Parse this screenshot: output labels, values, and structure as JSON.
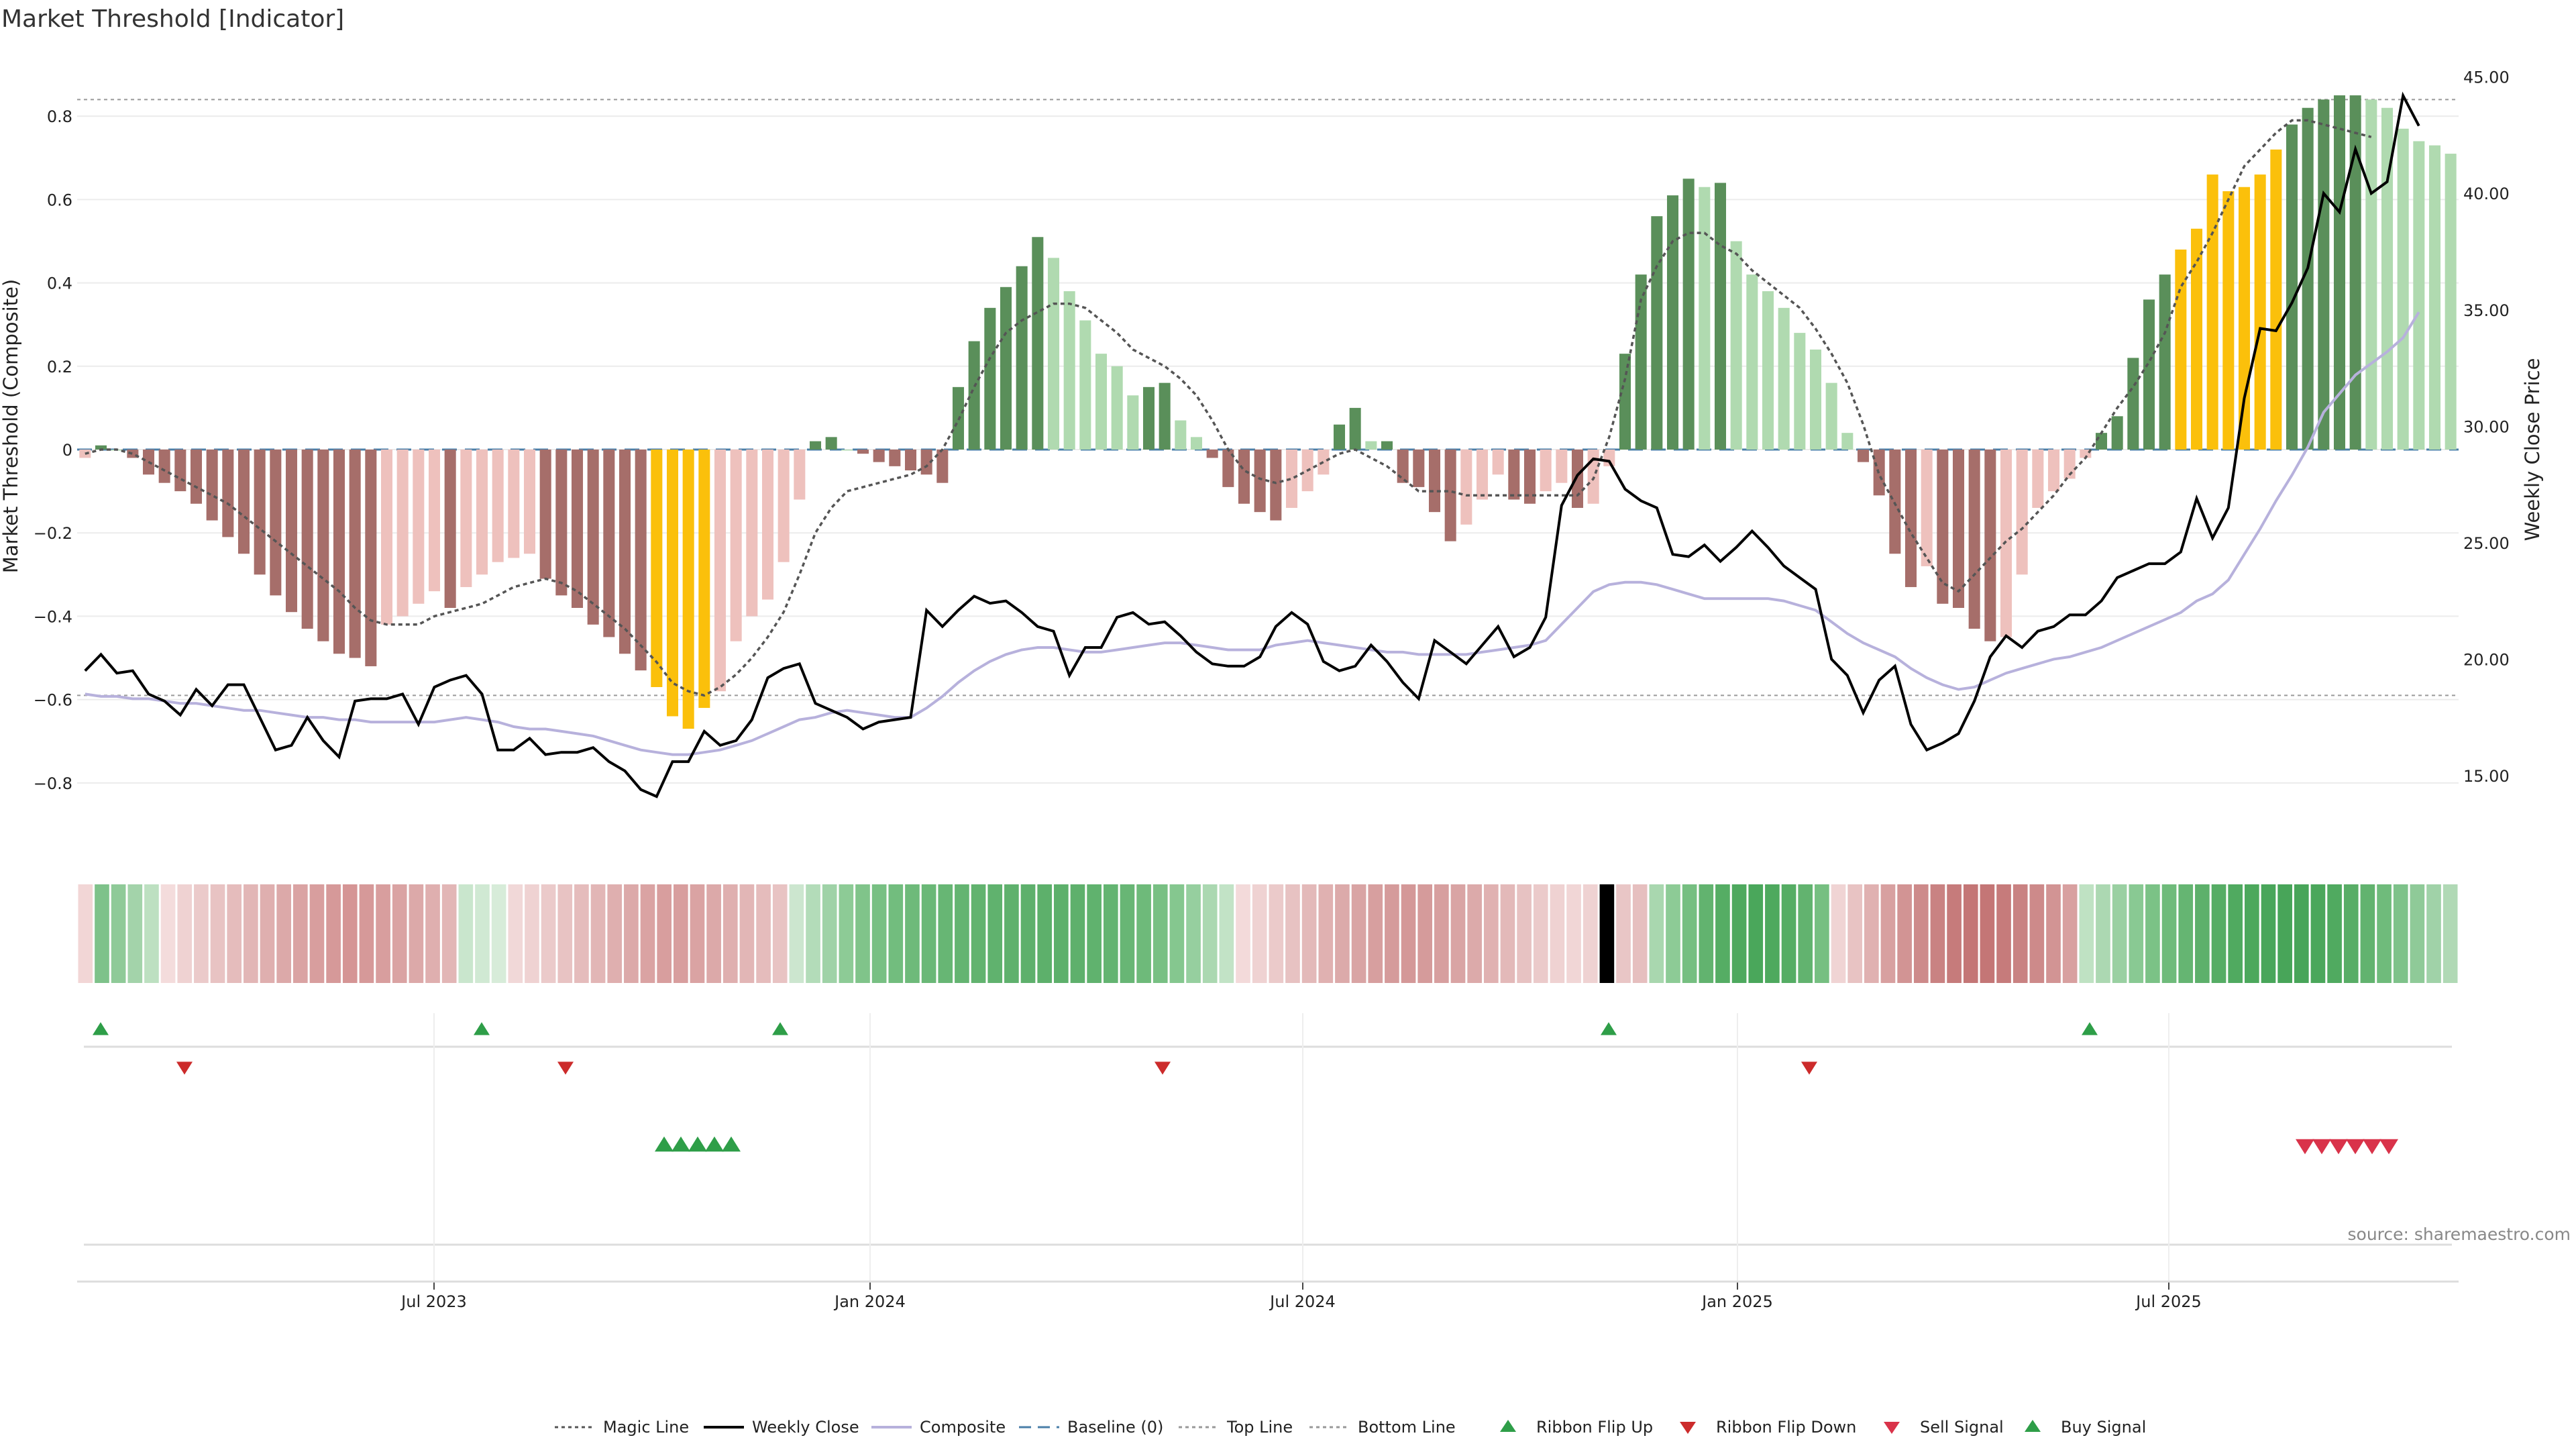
{
  "chart_data": {
    "type": "bar",
    "title": "Market Threshold [Indicator]",
    "ylabel_left": "Market Threshold (Composite)",
    "ylabel_right": "Weekly Close Price",
    "ylim_left": [
      -0.95,
      0.95
    ],
    "ylim_right": [
      12.0,
      46.0
    ],
    "yticks_left": [
      "0.8",
      "0.6",
      "0.4",
      "0.2",
      "0",
      "−0.2",
      "−0.4",
      "−0.6",
      "−0.8"
    ],
    "yticks_right": [
      "45.00",
      "40.00",
      "35.00",
      "30.00",
      "25.00",
      "20.00",
      "15.00"
    ],
    "xticks": [
      "Jul 2023",
      "Jan 2024",
      "Jul 2024",
      "Jan 2025",
      "Jul 2025"
    ],
    "top_line": 0.84,
    "bottom_line": -0.59,
    "baseline": 0,
    "composite": [
      -0.02,
      0.01,
      0.0,
      -0.02,
      -0.06,
      -0.08,
      -0.1,
      -0.13,
      -0.17,
      -0.21,
      -0.25,
      -0.3,
      -0.35,
      -0.39,
      -0.43,
      -0.46,
      -0.49,
      -0.5,
      -0.52,
      -0.42,
      -0.4,
      -0.37,
      -0.34,
      -0.38,
      -0.33,
      -0.3,
      -0.27,
      -0.26,
      -0.25,
      -0.31,
      -0.35,
      -0.38,
      -0.42,
      -0.45,
      -0.49,
      -0.53,
      -0.57,
      -0.64,
      -0.67,
      -0.62,
      -0.58,
      -0.46,
      -0.4,
      -0.36,
      -0.27,
      -0.12,
      0.02,
      0.03,
      0.0,
      -0.01,
      -0.03,
      -0.04,
      -0.05,
      -0.06,
      -0.08,
      0.15,
      0.26,
      0.34,
      0.39,
      0.44,
      0.51,
      0.46,
      0.38,
      0.31,
      0.23,
      0.2,
      0.13,
      0.15,
      0.16,
      0.07,
      0.03,
      -0.02,
      -0.09,
      -0.13,
      -0.15,
      -0.17,
      -0.14,
      -0.1,
      -0.06,
      0.06,
      0.1,
      0.02,
      0.02,
      -0.08,
      -0.09,
      -0.15,
      -0.22,
      -0.18,
      -0.12,
      -0.06,
      -0.12,
      -0.13,
      -0.1,
      -0.08,
      -0.14,
      -0.13,
      -0.04,
      0.23,
      0.42,
      0.56,
      0.61,
      0.65,
      0.63,
      0.64,
      0.5,
      0.42,
      0.38,
      0.34,
      0.28,
      0.24,
      0.16,
      0.04,
      -0.03,
      -0.11,
      -0.25,
      -0.33,
      -0.28,
      -0.37,
      -0.38,
      -0.43,
      -0.46,
      -0.45,
      -0.3,
      -0.14,
      -0.1,
      -0.07,
      -0.02,
      0.04,
      0.08,
      0.22,
      0.36,
      0.42,
      0.48,
      0.53,
      0.66,
      0.62,
      0.63,
      0.66,
      0.72,
      0.78,
      0.82,
      0.84,
      0.85,
      0.85,
      0.84,
      0.82,
      0.77,
      0.74,
      0.73,
      0.71
    ],
    "bar_colors": {
      "strong_bull": "#5a8f5a",
      "weak_bull": "#b0dab0",
      "strong_bear": "#a66e6a",
      "weak_bear": "#eec1bd",
      "extreme": "#fbc00b"
    },
    "extreme_bars": [
      36,
      37,
      38,
      39,
      132,
      133,
      134,
      135,
      136,
      137,
      138
    ],
    "magic_line": [
      -0.01,
      0.0,
      0.0,
      -0.01,
      -0.03,
      -0.05,
      -0.07,
      -0.09,
      -0.11,
      -0.13,
      -0.16,
      -0.19,
      -0.22,
      -0.25,
      -0.28,
      -0.31,
      -0.34,
      -0.38,
      -0.41,
      -0.42,
      -0.42,
      -0.42,
      -0.4,
      -0.39,
      -0.38,
      -0.37,
      -0.35,
      -0.33,
      -0.32,
      -0.31,
      -0.32,
      -0.34,
      -0.37,
      -0.4,
      -0.43,
      -0.47,
      -0.51,
      -0.56,
      -0.58,
      -0.59,
      -0.57,
      -0.54,
      -0.5,
      -0.45,
      -0.39,
      -0.3,
      -0.2,
      -0.14,
      -0.1,
      -0.09,
      -0.08,
      -0.07,
      -0.06,
      -0.04,
      0.0,
      0.07,
      0.15,
      0.22,
      0.28,
      0.31,
      0.33,
      0.35,
      0.35,
      0.34,
      0.31,
      0.28,
      0.24,
      0.22,
      0.2,
      0.17,
      0.13,
      0.07,
      0.0,
      -0.05,
      -0.07,
      -0.08,
      -0.07,
      -0.05,
      -0.03,
      -0.01,
      0.0,
      -0.02,
      -0.04,
      -0.07,
      -0.1,
      -0.1,
      -0.1,
      -0.11,
      -0.11,
      -0.11,
      -0.11,
      -0.11,
      -0.11,
      -0.11,
      -0.11,
      -0.07,
      0.03,
      0.17,
      0.36,
      0.44,
      0.5,
      0.52,
      0.52,
      0.49,
      0.47,
      0.43,
      0.4,
      0.37,
      0.34,
      0.29,
      0.23,
      0.16,
      0.06,
      -0.06,
      -0.13,
      -0.2,
      -0.26,
      -0.32,
      -0.34,
      -0.3,
      -0.26,
      -0.22,
      -0.19,
      -0.15,
      -0.11,
      -0.06,
      -0.02,
      0.04,
      0.1,
      0.15,
      0.21,
      0.28,
      0.39,
      0.45,
      0.52,
      0.6,
      0.68,
      0.72,
      0.76,
      0.79,
      0.79,
      0.78,
      0.77,
      0.76,
      0.75
    ],
    "weekly_close": [
      19.5,
      20.2,
      19.4,
      19.5,
      18.5,
      18.2,
      17.6,
      18.7,
      18.0,
      18.9,
      18.9,
      17.5,
      16.1,
      16.3,
      17.5,
      16.5,
      15.8,
      18.2,
      18.3,
      18.3,
      18.5,
      17.2,
      18.8,
      19.1,
      19.3,
      18.5,
      16.1,
      16.1,
      16.6,
      15.9,
      16.0,
      16.0,
      16.2,
      15.6,
      15.2,
      14.4,
      14.1,
      15.6,
      15.6,
      16.9,
      16.3,
      16.5,
      17.4,
      19.2,
      19.6,
      19.8,
      18.1,
      17.8,
      17.5,
      17.0,
      17.3,
      17.4,
      17.5,
      22.1,
      21.4,
      22.1,
      22.7,
      22.4,
      22.5,
      22.0,
      21.4,
      21.2,
      19.3,
      20.5,
      20.5,
      21.8,
      22.0,
      21.5,
      21.6,
      21.0,
      20.3,
      19.8,
      19.7,
      19.7,
      20.1,
      21.4,
      22.0,
      21.5,
      19.9,
      19.5,
      19.7,
      20.6,
      19.9,
      19.0,
      18.3,
      20.8,
      20.3,
      19.8,
      20.6,
      21.4,
      20.1,
      20.5,
      21.8,
      26.6,
      27.9,
      28.6,
      28.5,
      27.3,
      26.8,
      26.5,
      24.5,
      24.4,
      24.9,
      24.2,
      24.8,
      25.5,
      24.8,
      24.0,
      23.5,
      23.0,
      20.0,
      19.3,
      17.7,
      19.1,
      19.7,
      17.2,
      16.1,
      16.4,
      16.8,
      18.2,
      20.1,
      21.0,
      20.5,
      21.2,
      21.4,
      21.9,
      21.9,
      22.5,
      23.5,
      23.8,
      24.1,
      24.1,
      24.6,
      26.9,
      25.2,
      26.5,
      31.2,
      34.2,
      34.1,
      35.3,
      36.8,
      40.0,
      39.2,
      41.9,
      40.0,
      40.5,
      44.2,
      42.9
    ],
    "composite_line": [
      18.5,
      18.4,
      18.4,
      18.3,
      18.3,
      18.2,
      18.1,
      18.1,
      18.0,
      17.9,
      17.8,
      17.8,
      17.7,
      17.6,
      17.5,
      17.5,
      17.4,
      17.4,
      17.3,
      17.3,
      17.3,
      17.3,
      17.3,
      17.4,
      17.5,
      17.4,
      17.3,
      17.1,
      17.0,
      17.0,
      16.9,
      16.8,
      16.7,
      16.5,
      16.3,
      16.1,
      16.0,
      15.9,
      15.9,
      16.0,
      16.1,
      16.3,
      16.5,
      16.8,
      17.1,
      17.4,
      17.5,
      17.7,
      17.8,
      17.7,
      17.6,
      17.5,
      17.5,
      17.9,
      18.4,
      19.0,
      19.5,
      19.9,
      20.2,
      20.4,
      20.5,
      20.5,
      20.4,
      20.3,
      20.3,
      20.4,
      20.5,
      20.6,
      20.7,
      20.7,
      20.6,
      20.5,
      20.4,
      20.4,
      20.4,
      20.6,
      20.7,
      20.8,
      20.7,
      20.6,
      20.5,
      20.4,
      20.3,
      20.3,
      20.2,
      20.2,
      20.2,
      20.2,
      20.3,
      20.4,
      20.5,
      20.6,
      20.8,
      21.5,
      22.2,
      22.9,
      23.2,
      23.3,
      23.3,
      23.2,
      23.0,
      22.8,
      22.6,
      22.6,
      22.6,
      22.6,
      22.6,
      22.5,
      22.3,
      22.1,
      21.6,
      21.1,
      20.7,
      20.4,
      20.1,
      19.6,
      19.2,
      18.9,
      18.7,
      18.8,
      19.1,
      19.4,
      19.6,
      19.8,
      20.0,
      20.1,
      20.3,
      20.5,
      20.8,
      21.1,
      21.4,
      21.7,
      22.0,
      22.5,
      22.8,
      23.4,
      24.5,
      25.6,
      26.8,
      27.9,
      29.1,
      30.6,
      31.4,
      32.2,
      32.7,
      33.2,
      33.8,
      34.9
    ],
    "ribbon_colors": [
      "#f2d6d6",
      "#7ec28a",
      "#8fca98",
      "#a3d3aa",
      "#bde0c1",
      "#f4dcdc",
      "#efd2d2",
      "#ebcaca",
      "#e8c3c3",
      "#e5bcbc",
      "#e2b6b6",
      "#dfafaf",
      "#dca9a9",
      "#daa3a3",
      "#d89e9e",
      "#d69999",
      "#d59595",
      "#d69999",
      "#d89e9e",
      "#daa3a3",
      "#dca9a9",
      "#dfafaf",
      "#e2b6b6",
      "#c9e6cd",
      "#d0e9d3",
      "#d7ecd9",
      "#f1d8d8",
      "#efd2d2",
      "#ebcaca",
      "#e8c3c3",
      "#e5bcbc",
      "#e2b6b6",
      "#dfafaf",
      "#dca9a9",
      "#daa3a3",
      "#d89e9e",
      "#d89e9e",
      "#daa3a3",
      "#dca9a9",
      "#dfafaf",
      "#e2b6b6",
      "#e5bcbc",
      "#e8c3c3",
      "#ccE6cf",
      "#b3dcb9",
      "#9fd2a7",
      "#8dcb96",
      "#80c48a",
      "#78c083",
      "#72bd7e",
      "#6eba7a",
      "#6ab877",
      "#67b674",
      "#64b471",
      "#62b36f",
      "#60b26e",
      "#5fb16d",
      "#5eb06c",
      "#5db06b",
      "#5db06b",
      "#5eb06c",
      "#60b26e",
      "#63b471",
      "#68b675",
      "#6eba7a",
      "#78c083",
      "#85c78f",
      "#96cf9f",
      "#abd8b1",
      "#c2e3c6",
      "#f3dada",
      "#efd2d2",
      "#ebcaca",
      "#e7c2c2",
      "#e3b9b9",
      "#e0b1b1",
      "#dcaaaa",
      "#d9a4a4",
      "#d79f9f",
      "#d59b9b",
      "#d49898",
      "#d59b9b",
      "#d79f9f",
      "#d9a4a4",
      "#dcaaaa",
      "#e0b1b1",
      "#e3b9b9",
      "#e7c2c2",
      "#ebcaca",
      "#efd2d2",
      "#f1d6d6",
      "#efd2d2",
      "#ecccc",
      "#e9c6c6",
      "#e6bfbf",
      "#a9d7af",
      "#8dcb96",
      "#76bf81",
      "#62b36f",
      "#55ad64",
      "#4ea95e",
      "#4aa75b",
      "#4ea95e",
      "#55ad64",
      "#62b36f",
      "#76bf81",
      "#f0d4d4",
      "#e8c3c3",
      "#e0b1b1",
      "#d8a0a0",
      "#d29494",
      "#cd8a8a",
      "#c98282",
      "#c67b7b",
      "#c47676",
      "#c47676",
      "#c67b7b",
      "#c98282",
      "#cd8a8a",
      "#d29494",
      "#d8a0a0",
      "#bfe2c3",
      "#acd8b2",
      "#9ad0a2",
      "#89c993",
      "#7bc286",
      "#6fbb7b",
      "#65b572",
      "#5db06b",
      "#56ad65",
      "#50aa60",
      "#4ca85c",
      "#49a65a",
      "#48a559",
      "#48a559",
      "#4ba75b",
      "#50aa60",
      "#58ad66",
      "#62b36f",
      "#6fbb7b",
      "#7ec28a",
      "#8fca98",
      "#a0d2a8",
      "#b0d9b5"
    ],
    "ribbon_flip_up": [
      1,
      40,
      70,
      156,
      206
    ],
    "ribbon_flip_down": [
      10,
      49,
      110,
      177
    ],
    "buy_signal": [
      59,
      60,
      61,
      62,
      63,
      64,
      65
    ],
    "sell_signal": [
      228,
      229,
      230,
      231,
      232,
      233,
      234,
      235,
      236
    ],
    "legend": [
      "Magic Line",
      "Weekly Close",
      "Composite",
      "Baseline (0)",
      "Top Line",
      "Bottom Line",
      "Ribbon Flip Up",
      "Ribbon Flip Down",
      "Sell Signal",
      "Buy Signal"
    ],
    "source": "source: sharemaestro.com",
    "colors": {
      "weekly_close": "#000000",
      "composite_line": "#b7b1dc",
      "magic_line": "#555555",
      "baseline": "#4a7fa8",
      "threshold_lines": "#999999",
      "flip_up": "#2e9e48",
      "flip_down": "#cc2b2b",
      "buy": "#2e9e48",
      "sell": "#d9334a"
    }
  }
}
